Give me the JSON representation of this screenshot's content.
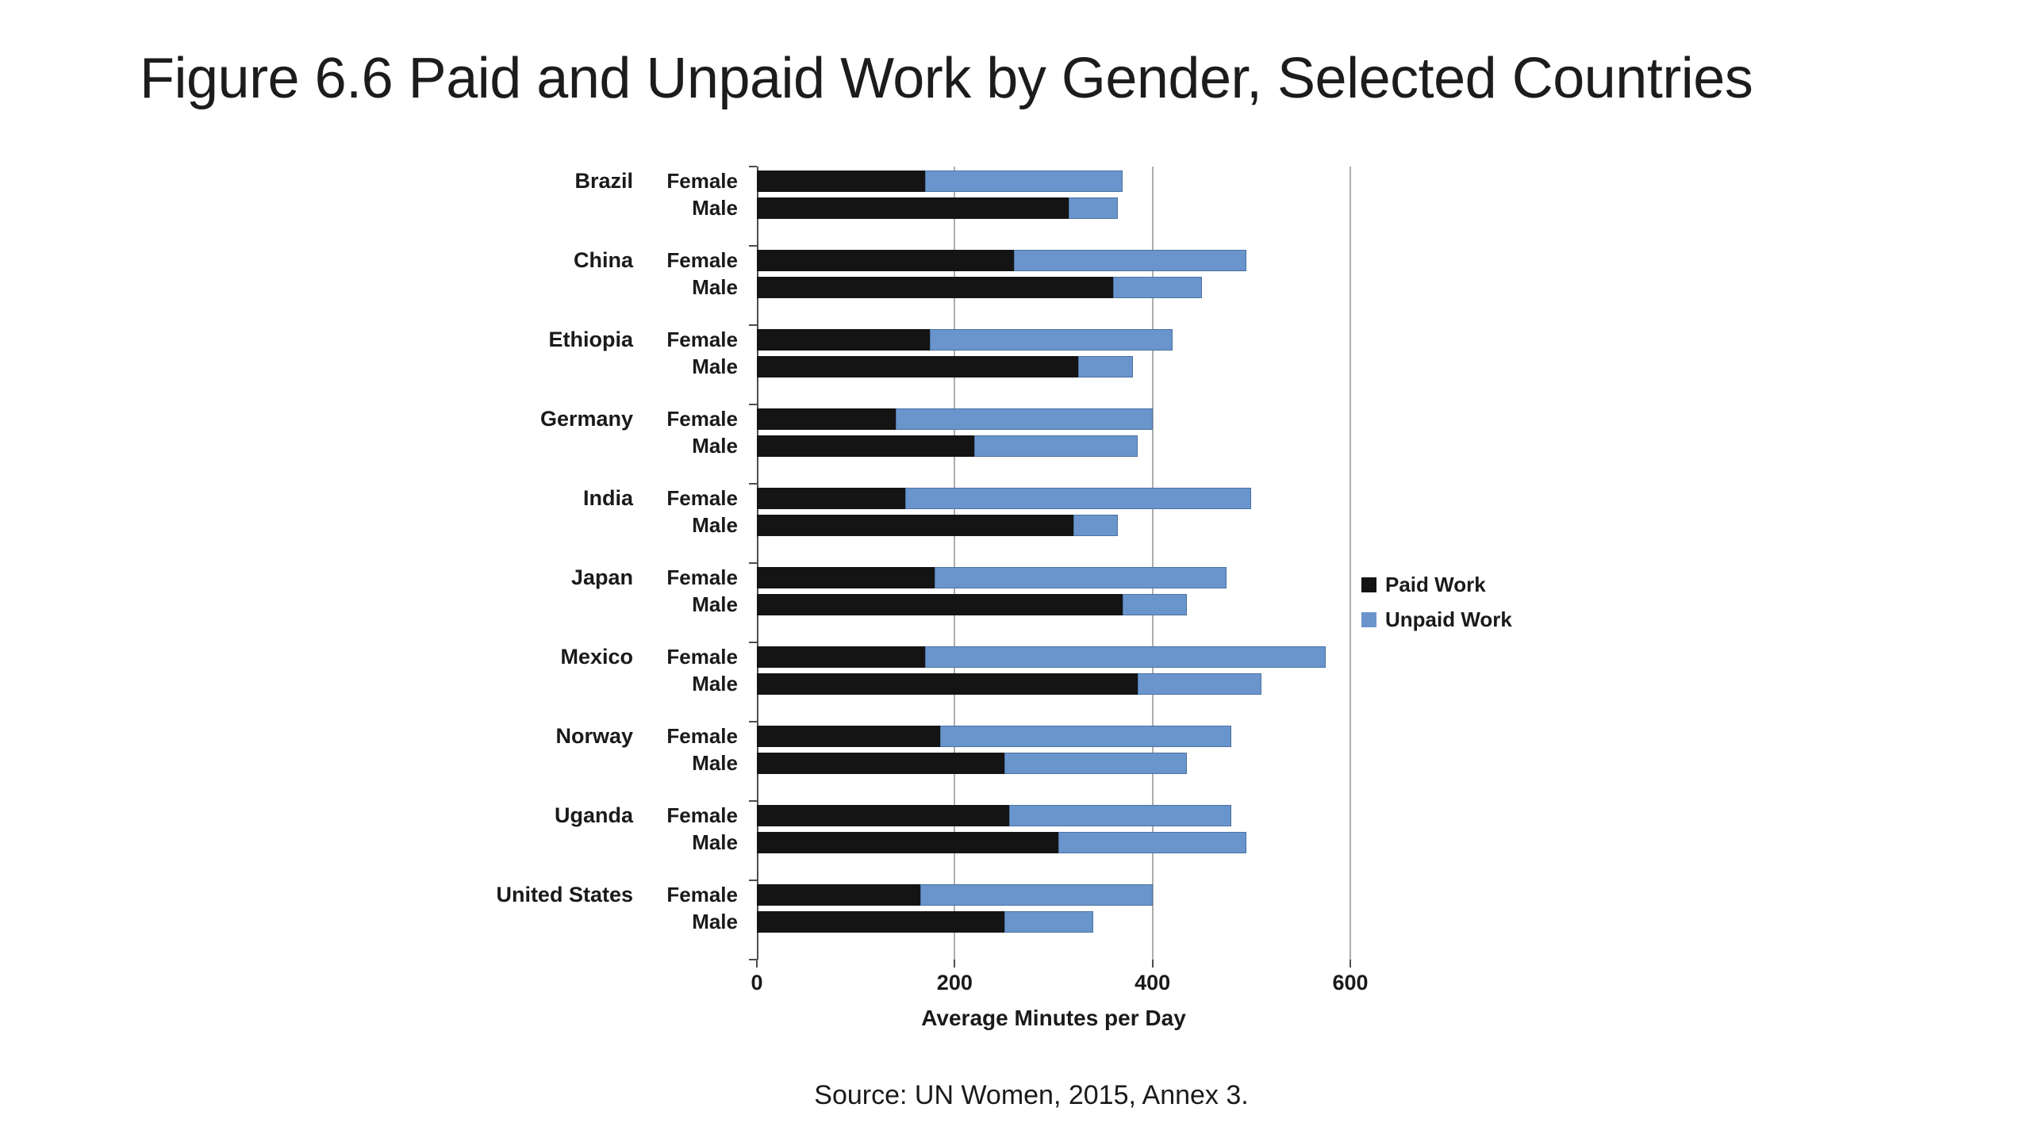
{
  "title": "Figure 6.6 Paid and Unpaid Work by Gender, Selected Countries",
  "source": "Source: UN Women, 2015, Annex 3.",
  "legend": [
    {
      "label": "Paid Work",
      "color": "#141414"
    },
    {
      "label": "Unpaid Work",
      "color": "#6a95cc"
    }
  ],
  "chart_data": {
    "type": "bar",
    "orientation": "horizontal",
    "stacked": true,
    "title": "Figure 6.6 Paid and Unpaid Work by Gender, Selected Countries",
    "xlabel": "Average Minutes per Day",
    "xlim": [
      0,
      600
    ],
    "xticks": [
      0,
      200,
      400,
      600
    ],
    "grid": true,
    "legend_position": "right",
    "series_names": [
      "Paid Work",
      "Unpaid Work"
    ],
    "colors": {
      "paid": "#141414",
      "unpaid": "#6a95cc"
    },
    "units": "minutes per day",
    "groups": [
      {
        "country": "Brazil",
        "rows": [
          {
            "gender": "Female",
            "paid": 170,
            "unpaid": 200
          },
          {
            "gender": "Male",
            "paid": 315,
            "unpaid": 50
          }
        ]
      },
      {
        "country": "China",
        "rows": [
          {
            "gender": "Female",
            "paid": 260,
            "unpaid": 235
          },
          {
            "gender": "Male",
            "paid": 360,
            "unpaid": 90
          }
        ]
      },
      {
        "country": "Ethiopia",
        "rows": [
          {
            "gender": "Female",
            "paid": 175,
            "unpaid": 245
          },
          {
            "gender": "Male",
            "paid": 325,
            "unpaid": 55
          }
        ]
      },
      {
        "country": "Germany",
        "rows": [
          {
            "gender": "Female",
            "paid": 140,
            "unpaid": 260
          },
          {
            "gender": "Male",
            "paid": 220,
            "unpaid": 165
          }
        ]
      },
      {
        "country": "India",
        "rows": [
          {
            "gender": "Female",
            "paid": 150,
            "unpaid": 350
          },
          {
            "gender": "Male",
            "paid": 320,
            "unpaid": 45
          }
        ]
      },
      {
        "country": "Japan",
        "rows": [
          {
            "gender": "Female",
            "paid": 180,
            "unpaid": 295
          },
          {
            "gender": "Male",
            "paid": 370,
            "unpaid": 65
          }
        ]
      },
      {
        "country": "Mexico",
        "rows": [
          {
            "gender": "Female",
            "paid": 170,
            "unpaid": 405
          },
          {
            "gender": "Male",
            "paid": 385,
            "unpaid": 125
          }
        ]
      },
      {
        "country": "Norway",
        "rows": [
          {
            "gender": "Female",
            "paid": 185,
            "unpaid": 295
          },
          {
            "gender": "Male",
            "paid": 250,
            "unpaid": 185
          }
        ]
      },
      {
        "country": "Uganda",
        "rows": [
          {
            "gender": "Female",
            "paid": 255,
            "unpaid": 225
          },
          {
            "gender": "Male",
            "paid": 305,
            "unpaid": 190
          }
        ]
      },
      {
        "country": "United States",
        "rows": [
          {
            "gender": "Female",
            "paid": 165,
            "unpaid": 235
          },
          {
            "gender": "Male",
            "paid": 250,
            "unpaid": 90
          }
        ]
      }
    ]
  }
}
